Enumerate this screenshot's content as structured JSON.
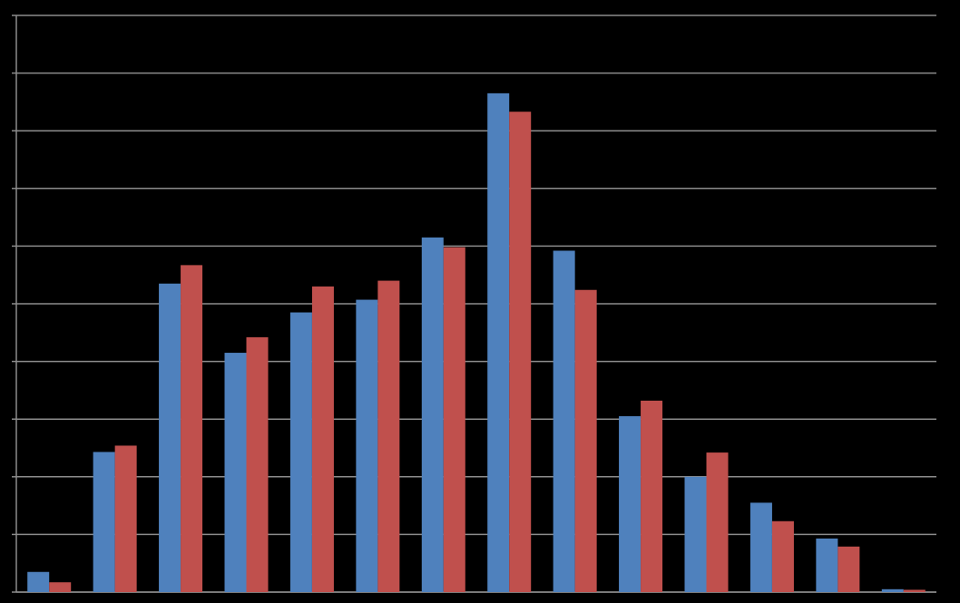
{
  "chart_data": {
    "type": "bar",
    "categories": [
      null,
      null,
      null,
      null,
      null,
      null,
      null,
      null,
      null,
      null,
      null,
      null,
      null,
      null
    ],
    "series": [
      {
        "color": "#4f81bd",
        "values": [
          0.35,
          2.43,
          5.35,
          4.15,
          4.85,
          5.07,
          6.15,
          8.65,
          5.92,
          3.05,
          2.0,
          1.55,
          0.93,
          0.05
        ]
      },
      {
        "color": "#c0504d",
        "values": [
          0.17,
          2.54,
          5.67,
          4.42,
          5.3,
          5.4,
          5.98,
          8.33,
          5.24,
          3.32,
          2.42,
          1.23,
          0.79,
          0.04
        ]
      }
    ],
    "ylim": [
      0,
      10
    ],
    "yticks": [
      0,
      1,
      2,
      3,
      4,
      5,
      6,
      7,
      8,
      9,
      10
    ],
    "grid": true,
    "tick_labels": false
  }
}
